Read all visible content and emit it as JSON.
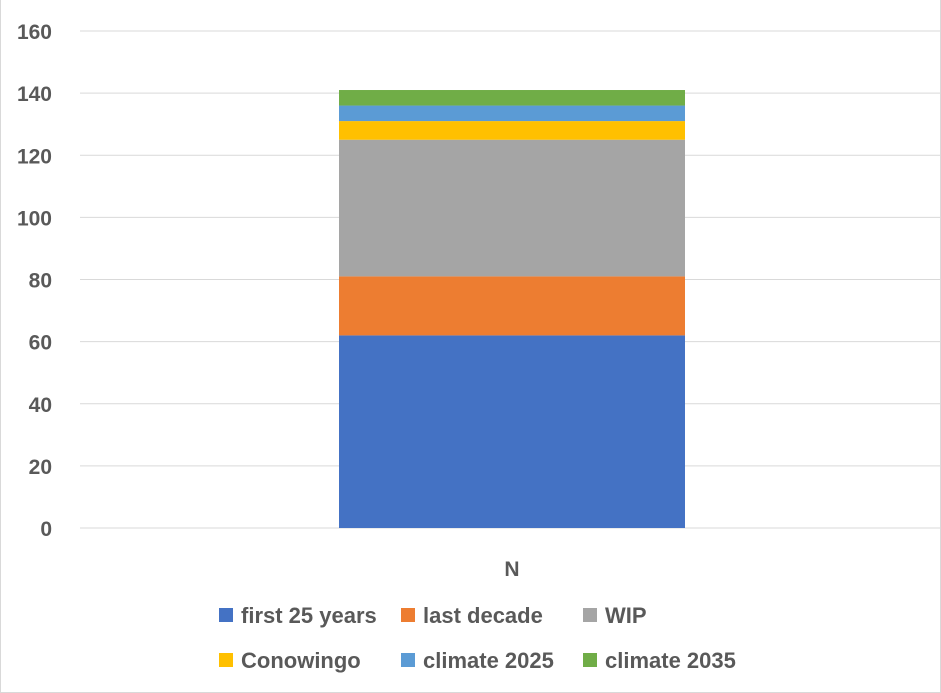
{
  "chart_data": {
    "type": "bar",
    "stacked": true,
    "categories": [
      "N"
    ],
    "series": [
      {
        "name": "first 25 years",
        "values": [
          62
        ],
        "color": "#4472C4"
      },
      {
        "name": "last decade",
        "values": [
          19
        ],
        "color": "#ED7D31"
      },
      {
        "name": "WIP",
        "values": [
          44
        ],
        "color": "#A5A5A5"
      },
      {
        "name": "Conowingo",
        "values": [
          6
        ],
        "color": "#FFC000"
      },
      {
        "name": "climate 2025",
        "values": [
          5
        ],
        "color": "#5B9BD5"
      },
      {
        "name": "climate 2035",
        "values": [
          5
        ],
        "color": "#70AD47"
      }
    ],
    "ylim": [
      0,
      160
    ],
    "yticks": [
      0,
      20,
      40,
      60,
      80,
      100,
      120,
      140,
      160
    ],
    "grid": true,
    "legend_position": "bottom"
  }
}
